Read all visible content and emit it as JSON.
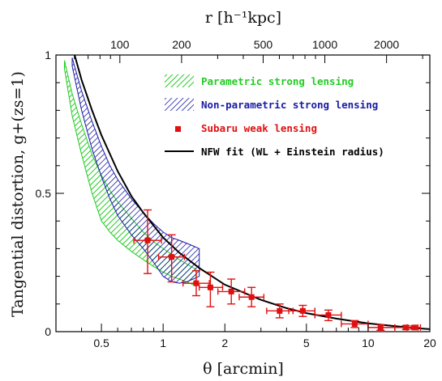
{
  "chart_data": {
    "type": "scatter",
    "title": "",
    "xlabel": "θ [arcmin]",
    "ylabel": "Tangential distortion, g+(zs=1)",
    "top_xlabel": "r [h⁻¹kpc]",
    "x_scale": "log",
    "xlim": [
      0.3,
      20
    ],
    "ylim": [
      0,
      1
    ],
    "x_ticks": [
      {
        "value": 0.5,
        "label": "0.5"
      },
      {
        "value": 1,
        "label": "1"
      },
      {
        "value": 2,
        "label": "2"
      },
      {
        "value": 5,
        "label": "5"
      },
      {
        "value": 10,
        "label": "10"
      },
      {
        "value": 20,
        "label": "20"
      }
    ],
    "y_ticks": [
      {
        "value": 0,
        "label": "0"
      },
      {
        "value": 0.5,
        "label": "0.5"
      },
      {
        "value": 1,
        "label": "1"
      }
    ],
    "top_ticks": [
      {
        "value": 100,
        "label": "100"
      },
      {
        "value": 200,
        "label": "200"
      },
      {
        "value": 500,
        "label": "500"
      },
      {
        "value": 1000,
        "label": "1000"
      },
      {
        "value": 2000,
        "label": "2000"
      }
    ],
    "legend": {
      "position": "top-right",
      "entries": [
        {
          "label": "Parametric strong lensing",
          "color": "#22cc22",
          "style": "hatch-green"
        },
        {
          "label": "Non-parametric strong lensing",
          "color": "#1a1aa6",
          "style": "hatch-blue"
        },
        {
          "label": "Subaru weak lensing",
          "color": "#e01010",
          "style": "square"
        },
        {
          "label": "NFW fit (WL + Einstein radius)",
          "color": "#000000",
          "style": "line"
        }
      ]
    },
    "series": [
      {
        "name": "Parametric strong lensing",
        "kind": "band",
        "color": "#22cc22",
        "x": [
          0.33,
          0.36,
          0.4,
          0.45,
          0.5,
          0.55,
          0.6,
          0.7,
          0.8,
          0.9,
          1.0,
          1.1,
          1.2,
          1.3,
          1.45
        ],
        "y_upper": [
          0.98,
          0.86,
          0.75,
          0.64,
          0.565,
          0.51,
          0.47,
          0.41,
          0.36,
          0.325,
          0.3,
          0.28,
          0.26,
          0.245,
          0.225
        ],
        "y_lower": [
          0.95,
          0.78,
          0.64,
          0.5,
          0.4,
          0.36,
          0.33,
          0.29,
          0.26,
          0.235,
          0.215,
          0.2,
          0.19,
          0.18,
          0.165
        ]
      },
      {
        "name": "Non-parametric strong lensing",
        "kind": "band",
        "color": "#1a1aa6",
        "x": [
          0.36,
          0.4,
          0.45,
          0.5,
          0.55,
          0.6,
          0.7,
          0.8,
          0.9,
          1.0,
          1.1,
          1.2,
          1.3,
          1.4,
          1.5
        ],
        "y_upper": [
          0.99,
          0.87,
          0.76,
          0.67,
          0.6,
          0.55,
          0.48,
          0.43,
          0.39,
          0.36,
          0.34,
          0.33,
          0.32,
          0.31,
          0.3
        ],
        "y_lower": [
          0.96,
          0.8,
          0.66,
          0.56,
          0.48,
          0.42,
          0.35,
          0.3,
          0.25,
          0.2,
          0.18,
          0.175,
          0.18,
          0.19,
          0.2
        ]
      },
      {
        "name": "Subaru weak lensing",
        "kind": "points",
        "color": "#e01010",
        "points": [
          {
            "x": 0.84,
            "y": 0.33,
            "xlo": 0.72,
            "xhi": 0.98,
            "ylo": 0.21,
            "yhi": 0.44
          },
          {
            "x": 1.1,
            "y": 0.27,
            "xlo": 0.95,
            "xhi": 1.27,
            "ylo": 0.18,
            "yhi": 0.35
          },
          {
            "x": 1.45,
            "y": 0.175,
            "xlo": 1.25,
            "xhi": 1.68,
            "ylo": 0.13,
            "yhi": 0.22
          },
          {
            "x": 1.7,
            "y": 0.16,
            "xlo": 1.5,
            "xhi": 1.95,
            "ylo": 0.09,
            "yhi": 0.215
          },
          {
            "x": 2.15,
            "y": 0.145,
            "xlo": 1.85,
            "xhi": 2.5,
            "ylo": 0.1,
            "yhi": 0.19
          },
          {
            "x": 2.7,
            "y": 0.125,
            "xlo": 2.35,
            "xhi": 3.1,
            "ylo": 0.09,
            "yhi": 0.16
          },
          {
            "x": 3.7,
            "y": 0.075,
            "xlo": 3.2,
            "xhi": 4.3,
            "ylo": 0.05,
            "yhi": 0.1
          },
          {
            "x": 4.8,
            "y": 0.075,
            "xlo": 4.1,
            "xhi": 5.5,
            "ylo": 0.055,
            "yhi": 0.095
          },
          {
            "x": 6.4,
            "y": 0.06,
            "xlo": 5.5,
            "xhi": 7.4,
            "ylo": 0.04,
            "yhi": 0.078
          },
          {
            "x": 8.6,
            "y": 0.028,
            "xlo": 7.4,
            "xhi": 10.0,
            "ylo": 0.015,
            "yhi": 0.04
          },
          {
            "x": 11.5,
            "y": 0.015,
            "xlo": 10.0,
            "xhi": 13.5,
            "ylo": 0.005,
            "yhi": 0.025
          },
          {
            "x": 15.3,
            "y": 0.015,
            "xlo": 13.5,
            "xhi": 17.5,
            "ylo": 0.008,
            "yhi": 0.022
          },
          {
            "x": 16.8,
            "y": 0.015,
            "xlo": 15.5,
            "xhi": 18.0,
            "ylo": 0.01,
            "yhi": 0.02
          }
        ]
      },
      {
        "name": "NFW fit (WL + Einstein radius)",
        "kind": "line",
        "color": "#000000",
        "x": [
          0.37,
          0.4,
          0.45,
          0.5,
          0.6,
          0.7,
          0.8,
          1.0,
          1.2,
          1.5,
          2.0,
          3.0,
          4.0,
          5.0,
          7.0,
          10.0,
          13.0,
          17.0,
          20.0
        ],
        "y": [
          1.0,
          0.91,
          0.8,
          0.71,
          0.58,
          0.49,
          0.43,
          0.34,
          0.285,
          0.23,
          0.17,
          0.115,
          0.085,
          0.067,
          0.047,
          0.03,
          0.021,
          0.013,
          0.009
        ]
      }
    ]
  }
}
